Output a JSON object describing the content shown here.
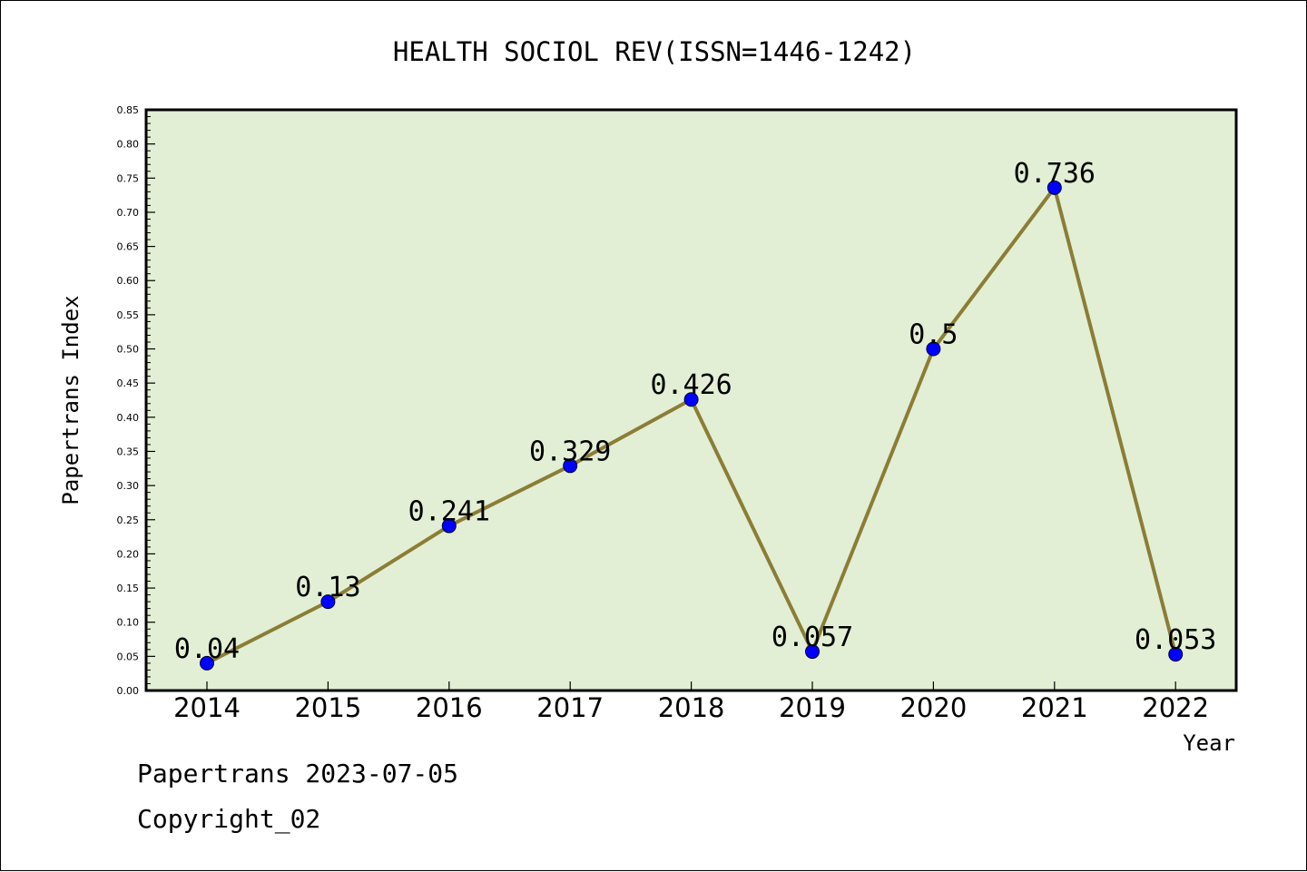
{
  "chart_data": {
    "type": "line",
    "title": "HEALTH SOCIOL REV(ISSN=1446-1242)",
    "xlabel": "Year",
    "ylabel": "Papertrans Index",
    "categories": [
      "2014",
      "2015",
      "2016",
      "2017",
      "2018",
      "2019",
      "2020",
      "2021",
      "2022"
    ],
    "values": [
      0.04,
      0.13,
      0.241,
      0.329,
      0.426,
      0.057,
      0.5,
      0.736,
      0.053
    ],
    "data_labels": [
      "0.04",
      "0.13",
      "0.241",
      "0.329",
      "0.426",
      "0.057",
      "0.5",
      "0.736",
      "0.053"
    ],
    "ylim": [
      0,
      0.85
    ],
    "yticks": [
      "0.00",
      "0.05",
      "0.10",
      "0.15",
      "0.20",
      "0.25",
      "0.30",
      "0.35",
      "0.40",
      "0.45",
      "0.50",
      "0.55",
      "0.60",
      "0.65",
      "0.70",
      "0.75",
      "0.80",
      "0.85"
    ],
    "grid": false,
    "colors": {
      "plot_background": "#e2efd4",
      "line": "#8b7d36",
      "marker": "#0000ff"
    }
  },
  "footer": {
    "line1": "Papertrans 2023-07-05",
    "line2": "Copyright_02"
  }
}
